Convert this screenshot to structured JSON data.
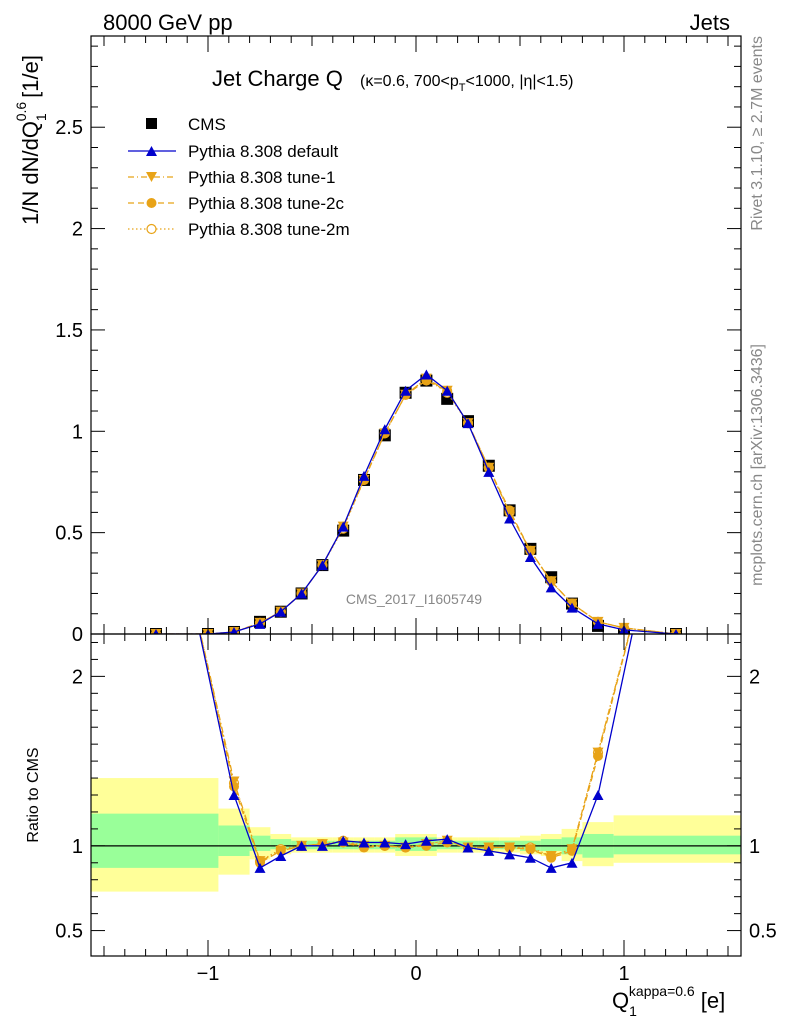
{
  "header": {
    "left": "8000 GeV pp",
    "right": "Jets"
  },
  "side_text": {
    "rivet": "Rivet 3.1.10, ≥ 2.7M events",
    "mcplots": "mcplots.cern.ch [arXiv:1306.3436]"
  },
  "watermark": "CMS_2017_I1605749",
  "colors": {
    "cms": "#000000",
    "default": "#0000cc",
    "tunes": "#e8a317",
    "band_inner": "#99ff99",
    "band_outer": "#ffff99"
  },
  "chart_data": [
    {
      "type": "line",
      "title": "Jet Charge Q",
      "title_sub": "(κ=0.6, 700<p",
      "title_sub2": "T",
      "title_sub3": "<1000, |η|<1.5)",
      "ylabel": "1/N dN/dQ",
      "ylabel_sup": "0.6",
      "ylabel_sub": "1",
      "ylabel_unit": "[1/e]",
      "xlim": [
        -1.5625,
        1.5625
      ],
      "ylim": [
        0,
        2.95
      ],
      "yticks": [
        0,
        0.5,
        1,
        1.5,
        2,
        2.5
      ],
      "ytick_labels": [
        "0",
        "0.5",
        "1",
        "1.5",
        "2",
        "2.5"
      ],
      "legend_position": "top-left",
      "x": [
        -1.25,
        -1.0,
        -0.875,
        -0.75,
        -0.65,
        -0.55,
        -0.45,
        -0.35,
        -0.25,
        -0.15,
        -0.05,
        0.05,
        0.15,
        0.25,
        0.35,
        0.45,
        0.55,
        0.65,
        0.75,
        0.875,
        1.0,
        1.25
      ],
      "series": [
        {
          "name": "CMS",
          "values": [
            0.0,
            0.0,
            0.01,
            0.06,
            0.11,
            0.2,
            0.34,
            0.51,
            0.76,
            0.98,
            1.19,
            1.25,
            1.16,
            1.05,
            0.83,
            0.61,
            0.42,
            0.28,
            0.15,
            0.04,
            0.0,
            0.0
          ]
        },
        {
          "name": "Pythia 8.308 default",
          "values": [
            0.0,
            0.0,
            0.01,
            0.05,
            0.11,
            0.2,
            0.34,
            0.53,
            0.78,
            1.01,
            1.2,
            1.28,
            1.2,
            1.04,
            0.8,
            0.57,
            0.38,
            0.23,
            0.13,
            0.05,
            0.02,
            0.0
          ]
        },
        {
          "name": "Pythia 8.308 tune-1",
          "values": [
            0.0,
            0.0,
            0.01,
            0.055,
            0.11,
            0.2,
            0.34,
            0.53,
            0.76,
            0.99,
            1.18,
            1.26,
            1.2,
            1.04,
            0.82,
            0.6,
            0.41,
            0.26,
            0.15,
            0.06,
            0.03,
            0.0
          ]
        },
        {
          "name": "Pythia 8.308 tune-2c",
          "values": [
            0.0,
            0.0,
            0.01,
            0.055,
            0.11,
            0.2,
            0.34,
            0.53,
            0.76,
            0.99,
            1.18,
            1.25,
            1.2,
            1.04,
            0.82,
            0.61,
            0.41,
            0.26,
            0.15,
            0.06,
            0.03,
            0.0
          ]
        },
        {
          "name": "Pythia 8.308 tune-2m",
          "values": [
            0.0,
            0.0,
            0.01,
            0.055,
            0.11,
            0.2,
            0.34,
            0.52,
            0.76,
            0.99,
            1.18,
            1.26,
            1.19,
            1.04,
            0.82,
            0.6,
            0.41,
            0.26,
            0.15,
            0.06,
            0.03,
            0.0
          ]
        }
      ]
    },
    {
      "type": "line",
      "ylabel": "Ratio to CMS",
      "xlabel": "Q",
      "xlabel_sub": "1",
      "xlabel_sup": "kappa=0.6",
      "xlabel_unit": "[e]",
      "xlim": [
        -1.5625,
        1.5625
      ],
      "ylim": [
        0.35,
        2.25
      ],
      "yticks": [
        0.5,
        1,
        2
      ],
      "ytick_labels": [
        "0.5",
        "1",
        "2"
      ],
      "xticks": [
        -1,
        0,
        1
      ],
      "xtick_labels": [
        "−1",
        "0",
        "1"
      ],
      "x": [
        -0.875,
        -0.75,
        -0.65,
        -0.55,
        -0.45,
        -0.35,
        -0.25,
        -0.15,
        -0.05,
        0.05,
        0.15,
        0.25,
        0.35,
        0.45,
        0.55,
        0.65,
        0.75,
        0.875
      ],
      "series": [
        {
          "name": "Pythia 8.308 default",
          "values": [
            1.3,
            0.87,
            0.94,
            1.0,
            1.0,
            1.03,
            1.02,
            1.02,
            1.01,
            1.03,
            1.04,
            0.99,
            0.97,
            0.95,
            0.93,
            0.87,
            0.9,
            1.3
          ]
        },
        {
          "name": "Pythia 8.308 tune-1",
          "values": [
            1.38,
            0.91,
            0.97,
            1.0,
            1.01,
            1.02,
            1.0,
            1.0,
            0.99,
            1.01,
            1.03,
            0.99,
            0.99,
            0.99,
            0.98,
            0.94,
            0.98,
            1.55
          ]
        },
        {
          "name": "Pythia 8.308 tune-2c",
          "values": [
            1.35,
            0.9,
            0.97,
            1.0,
            1.01,
            1.02,
            0.99,
            1.0,
            0.99,
            1.0,
            1.02,
            0.99,
            0.99,
            0.99,
            0.98,
            0.93,
            0.97,
            1.53
          ]
        },
        {
          "name": "Pythia 8.308 tune-2m",
          "values": [
            1.37,
            0.91,
            0.98,
            1.0,
            1.01,
            1.03,
            1.0,
            1.0,
            0.99,
            1.01,
            1.03,
            0.99,
            0.99,
            0.99,
            0.99,
            0.94,
            0.98,
            1.55
          ]
        }
      ],
      "band_edges": [
        -1.5625,
        -0.95,
        -0.8,
        -0.7,
        -0.6,
        -0.5,
        -0.4,
        -0.3,
        -0.2,
        -0.1,
        0.0,
        0.1,
        0.2,
        0.3,
        0.4,
        0.5,
        0.6,
        0.7,
        0.8,
        0.95,
        1.5625
      ],
      "band_inner": [
        [
          0.87,
          1.19
        ],
        [
          0.94,
          1.12
        ],
        [
          0.97,
          1.06
        ],
        [
          0.98,
          1.04
        ],
        [
          0.98,
          1.03
        ],
        [
          0.98,
          1.03
        ],
        [
          0.98,
          1.03
        ],
        [
          0.98,
          1.03
        ],
        [
          0.98,
          1.03
        ],
        [
          0.97,
          1.05
        ],
        [
          0.97,
          1.05
        ],
        [
          0.98,
          1.03
        ],
        [
          0.98,
          1.03
        ],
        [
          0.98,
          1.03
        ],
        [
          0.98,
          1.03
        ],
        [
          0.97,
          1.03
        ],
        [
          0.97,
          1.04
        ],
        [
          0.95,
          1.05
        ],
        [
          0.93,
          1.07
        ],
        [
          0.95,
          1.06
        ]
      ],
      "band_outer": [
        [
          0.73,
          1.4
        ],
        [
          0.83,
          1.22
        ],
        [
          0.92,
          1.11
        ],
        [
          0.95,
          1.07
        ],
        [
          0.96,
          1.05
        ],
        [
          0.96,
          1.05
        ],
        [
          0.96,
          1.05
        ],
        [
          0.96,
          1.05
        ],
        [
          0.96,
          1.05
        ],
        [
          0.94,
          1.07
        ],
        [
          0.94,
          1.07
        ],
        [
          0.96,
          1.05
        ],
        [
          0.96,
          1.05
        ],
        [
          0.96,
          1.05
        ],
        [
          0.96,
          1.05
        ],
        [
          0.95,
          1.06
        ],
        [
          0.94,
          1.07
        ],
        [
          0.91,
          1.1
        ],
        [
          0.88,
          1.14
        ],
        [
          0.9,
          1.18
        ]
      ]
    }
  ]
}
